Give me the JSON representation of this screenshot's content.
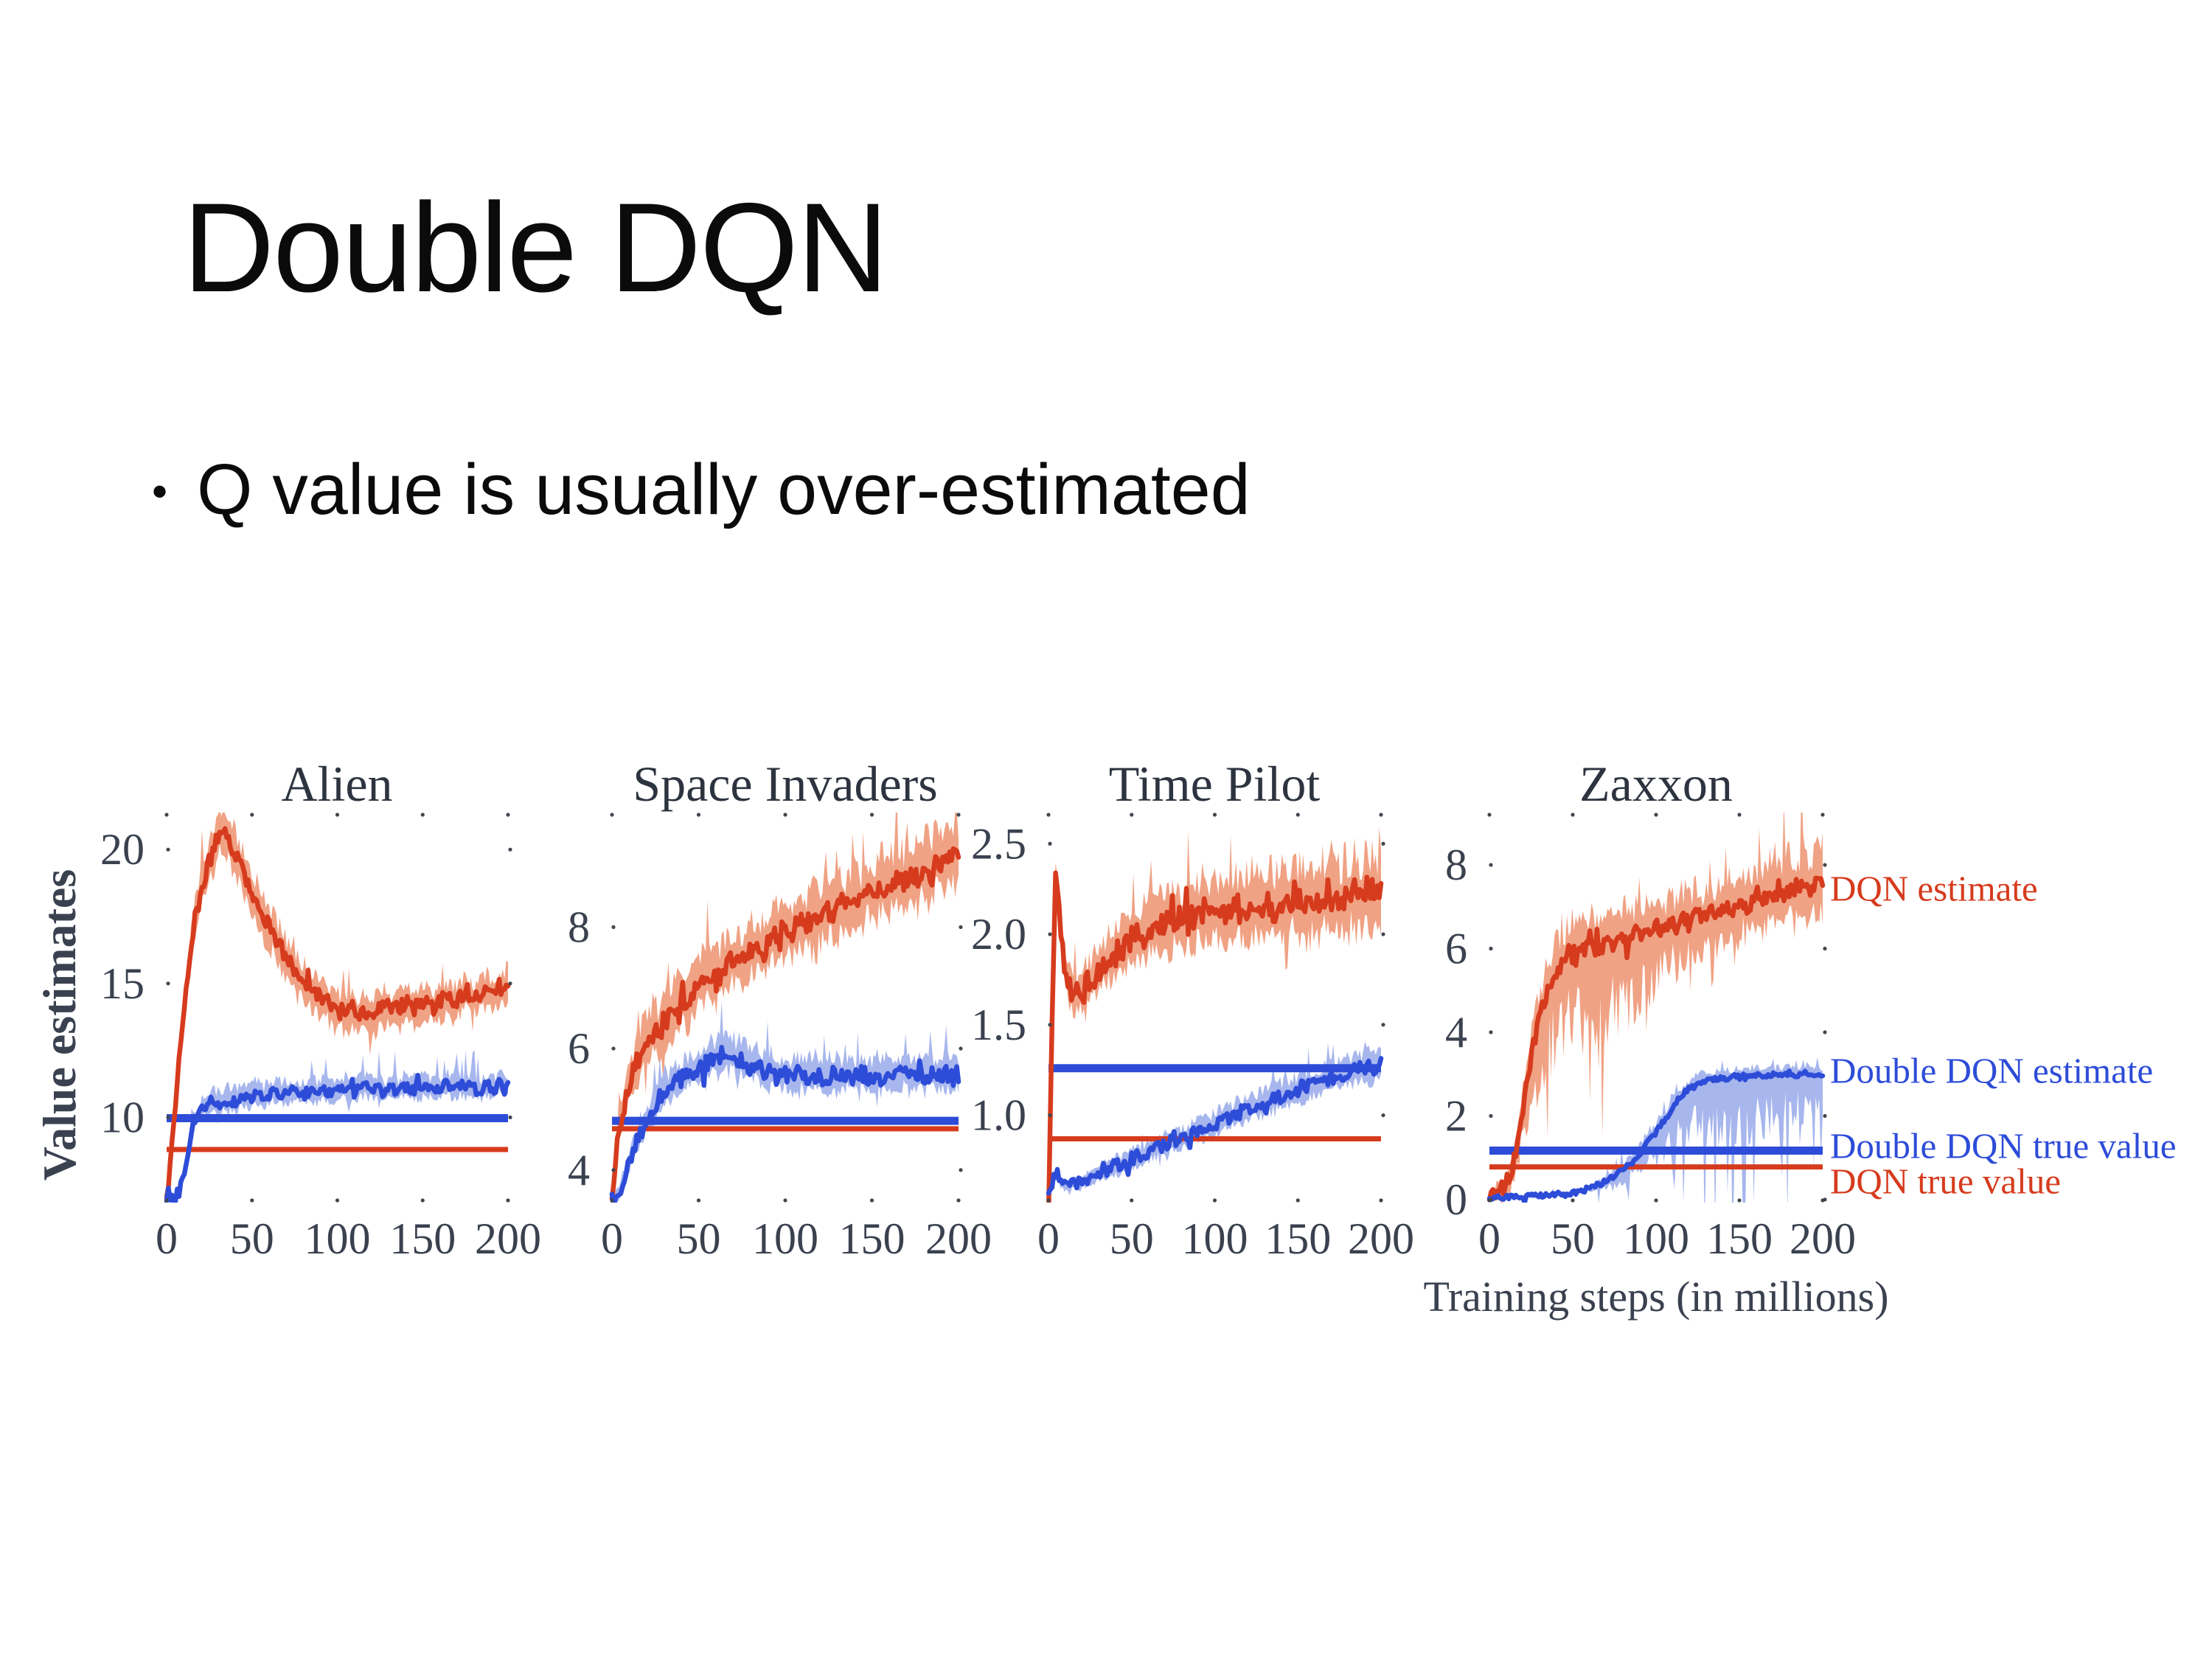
{
  "slide": {
    "title": "Double DQN",
    "bullet_glyph": "•",
    "bullet_text": "Q value is usually over-estimated"
  },
  "figure_colors": {
    "dqn_line": "#d63b1d",
    "dqn_band": "#f0a284",
    "ddqn_line": "#2d4cd8",
    "ddqn_band": "#a7b6ed",
    "tick_text": "#3a414f",
    "title_text": "#2d3440"
  },
  "chart_data": {
    "type": "line",
    "xlabel": "Training steps (in millions)",
    "ylabel": "Value estimates",
    "xticks": [
      0,
      50,
      100,
      150,
      200
    ],
    "xlim": [
      0,
      200
    ],
    "grid": false,
    "legend_position": "right-of-last-panel",
    "series_legend": [
      "DQN estimate",
      "Double DQN estimate",
      "Double DQN true value",
      "DQN true value"
    ],
    "x": [
      0,
      4,
      8,
      12,
      16,
      20,
      24,
      28,
      32,
      36,
      40,
      44,
      48,
      52,
      56,
      60,
      64,
      68,
      72,
      76,
      80,
      84,
      88,
      92,
      96,
      100,
      104,
      108,
      112,
      116,
      120,
      124,
      128,
      132,
      136,
      140,
      144,
      148,
      152,
      156,
      160,
      164,
      168,
      172,
      176,
      180,
      184,
      188,
      192,
      196,
      200
    ],
    "charts": [
      {
        "title": "Alien",
        "ylim": [
          6.9,
          21.3
        ],
        "yticks": [
          10,
          15,
          20
        ],
        "ytick_labels": [
          "10",
          "15",
          "20"
        ],
        "dqn_true": 8.8,
        "ddqn_true": 9.97,
        "dqn_estimate": [
          6.9,
          9.6,
          12.6,
          15.2,
          17.2,
          18.4,
          19.4,
          20.1,
          20.8,
          20.4,
          19.8,
          19.3,
          18.7,
          18.1,
          17.6,
          17.1,
          16.7,
          16.2,
          15.8,
          15.5,
          15.1,
          14.8,
          14.6,
          14.4,
          14.2,
          14.0,
          13.9,
          14.1,
          13.8,
          14.0,
          13.7,
          14.0,
          14.2,
          13.9,
          14.1,
          14.3,
          14.0,
          14.2,
          14.4,
          14.1,
          14.3,
          14.5,
          14.2,
          14.5,
          14.7,
          14.4,
          14.6,
          14.8,
          14.5,
          14.8,
          15.0
        ],
        "ddqn_estimate": [
          6.9,
          6.9,
          7.3,
          8.6,
          9.9,
          10.3,
          10.5,
          10.6,
          10.5,
          10.7,
          10.6,
          10.8,
          10.7,
          10.9,
          10.7,
          10.8,
          11.0,
          10.8,
          10.9,
          11.0,
          10.8,
          11.0,
          10.9,
          11.1,
          10.9,
          11.0,
          11.1,
          10.9,
          11.0,
          11.2,
          11.0,
          11.1,
          10.9,
          11.1,
          11.0,
          11.2,
          11.0,
          11.1,
          11.2,
          11.0,
          11.1,
          11.3,
          11.0,
          11.2,
          11.1,
          11.2,
          11.0,
          11.2,
          11.1,
          11.3,
          11.1
        ],
        "bands": {
          "dqn_upper": [
            [
              0,
              0.1
            ],
            [
              12,
              0.7
            ],
            [
              28,
              1.1
            ],
            [
              48,
              1.0
            ],
            [
              80,
              0.85
            ],
            [
              120,
              0.8
            ],
            [
              200,
              0.75
            ]
          ],
          "dqn_lower": [
            [
              0,
              0.1
            ],
            [
              12,
              0.6
            ],
            [
              28,
              1.0
            ],
            [
              48,
              1.0
            ],
            [
              100,
              0.9
            ],
            [
              200,
              0.7
            ]
          ],
          "ddqn_upper": [
            [
              0,
              0.05
            ],
            [
              12,
              0.3
            ],
            [
              24,
              0.55
            ],
            [
              60,
              0.6
            ],
            [
              120,
              0.55
            ],
            [
              200,
              0.55
            ]
          ],
          "ddqn_lower": [
            [
              0,
              0.05
            ],
            [
              12,
              0.25
            ],
            [
              24,
              0.45
            ],
            [
              200,
              0.45
            ]
          ]
        }
      },
      {
        "title": "Space Invaders",
        "ylim": [
          3.5,
          9.85
        ],
        "yticks": [
          4,
          6,
          8
        ],
        "ytick_labels": [
          "4",
          "6",
          "8"
        ],
        "dqn_true": 4.68,
        "ddqn_true": 4.81,
        "dqn_estimate": [
          3.6,
          4.7,
          5.2,
          5.6,
          5.9,
          6.1,
          6.3,
          6.2,
          6.5,
          6.6,
          6.8,
          6.7,
          7.0,
          7.1,
          7.2,
          7.1,
          7.3,
          7.4,
          7.5,
          7.4,
          7.6,
          7.7,
          7.6,
          7.8,
          7.9,
          8.0,
          7.9,
          8.1,
          8.0,
          8.2,
          8.1,
          8.3,
          8.2,
          8.4,
          8.3,
          8.5,
          8.4,
          8.6,
          8.5,
          8.7,
          8.6,
          8.8,
          8.7,
          8.9,
          8.8,
          9.0,
          8.9,
          9.1,
          9.0,
          9.2,
          9.1
        ],
        "ddqn_estimate": [
          3.5,
          3.6,
          4.0,
          4.3,
          4.6,
          4.8,
          5.0,
          5.2,
          5.3,
          5.4,
          5.5,
          5.6,
          5.6,
          5.7,
          5.8,
          5.8,
          5.9,
          5.9,
          5.8,
          5.8,
          5.7,
          5.7,
          5.6,
          5.6,
          5.5,
          5.6,
          5.5,
          5.6,
          5.5,
          5.6,
          5.5,
          5.5,
          5.6,
          5.5,
          5.6,
          5.5,
          5.6,
          5.5,
          5.6,
          5.5,
          5.6,
          5.5,
          5.6,
          5.5,
          5.6,
          5.5,
          5.6,
          5.5,
          5.6,
          5.5,
          5.6
        ],
        "bands": {
          "dqn_upper": [
            [
              0,
              0.15
            ],
            [
              16,
              0.55
            ],
            [
              60,
              0.55
            ],
            [
              120,
              0.6
            ],
            [
              200,
              0.7
            ]
          ],
          "dqn_lower": [
            [
              0,
              0.12
            ],
            [
              16,
              0.45
            ],
            [
              200,
              0.55
            ]
          ],
          "ddqn_upper": [
            [
              0,
              0.08
            ],
            [
              16,
              0.3
            ],
            [
              60,
              0.4
            ],
            [
              200,
              0.35
            ]
          ],
          "ddqn_lower": [
            [
              0,
              0.08
            ],
            [
              16,
              0.25
            ],
            [
              200,
              0.3
            ]
          ]
        }
      },
      {
        "title": "Time Pilot",
        "ylim": [
          0.53,
          2.66
        ],
        "yticks": [
          1.0,
          1.5,
          2.0,
          2.5
        ],
        "ytick_labels": [
          "1.0",
          "1.5",
          "2.0",
          "2.5"
        ],
        "dqn_true": 0.87,
        "ddqn_true": 1.26,
        "dqn_estimate": [
          0.55,
          2.35,
          1.95,
          1.72,
          1.66,
          1.7,
          1.73,
          1.77,
          1.82,
          1.86,
          1.89,
          1.93,
          1.96,
          2.0,
          1.97,
          2.05,
          2.02,
          2.08,
          2.05,
          2.1,
          2.07,
          2.12,
          2.09,
          2.14,
          2.1,
          2.12,
          2.15,
          2.1,
          2.17,
          2.12,
          2.15,
          2.2,
          2.14,
          2.18,
          2.12,
          2.2,
          2.15,
          2.22,
          2.17,
          2.15,
          2.2,
          2.18,
          2.24,
          2.19,
          2.17,
          2.21,
          2.24,
          2.19,
          2.27,
          2.21,
          2.24
        ],
        "ddqn_estimate": [
          0.55,
          0.68,
          0.62,
          0.6,
          0.63,
          0.62,
          0.65,
          0.67,
          0.7,
          0.7,
          0.72,
          0.73,
          0.75,
          0.77,
          0.78,
          0.8,
          0.82,
          0.83,
          0.85,
          0.86,
          0.87,
          0.88,
          0.9,
          0.92,
          0.93,
          0.95,
          0.97,
          0.98,
          1.0,
          1.02,
          1.03,
          1.05,
          1.06,
          1.08,
          1.09,
          1.1,
          1.12,
          1.13,
          1.15,
          1.16,
          1.17,
          1.19,
          1.2,
          1.21,
          1.22,
          1.24,
          1.25,
          1.26,
          1.27,
          1.26,
          1.28
        ],
        "bands": {
          "dqn_upper": [
            [
              0,
              0.04
            ],
            [
              4,
              0.1
            ],
            [
              16,
              0.14
            ],
            [
              60,
              0.2
            ],
            [
              200,
              0.28
            ]
          ],
          "dqn_lower": [
            [
              0,
              0.04
            ],
            [
              4,
              0.1
            ],
            [
              16,
              0.14
            ],
            [
              60,
              0.18
            ],
            [
              200,
              0.25
            ]
          ],
          "ddqn_upper": [
            [
              0,
              0.02
            ],
            [
              40,
              0.06
            ],
            [
              120,
              0.09
            ],
            [
              200,
              0.11
            ]
          ],
          "ddqn_lower": [
            [
              0,
              0.02
            ],
            [
              40,
              0.06
            ],
            [
              120,
              0.08
            ],
            [
              200,
              0.1
            ]
          ]
        }
      },
      {
        "title": "Zaxxon",
        "ylim": [
          -0.02,
          9.2
        ],
        "yticks": [
          0,
          2,
          4,
          6,
          8
        ],
        "ytick_labels": [
          "0",
          "2",
          "4",
          "6",
          "8"
        ],
        "dqn_true": 0.78,
        "ddqn_true": 1.17,
        "dqn_estimate": [
          0.1,
          0.15,
          0.25,
          0.5,
          1.2,
          2.2,
          3.2,
          4.0,
          4.6,
          5.1,
          5.5,
          5.7,
          5.9,
          6.0,
          6.0,
          6.1,
          6.0,
          6.1,
          6.2,
          6.1,
          6.3,
          6.2,
          6.4,
          6.3,
          6.4,
          6.5,
          6.4,
          6.6,
          6.5,
          6.7,
          6.6,
          6.8,
          6.7,
          6.9,
          6.8,
          7.0,
          6.9,
          7.0,
          7.1,
          7.0,
          7.2,
          7.1,
          7.3,
          7.2,
          7.3,
          7.4,
          7.3,
          7.5,
          7.4,
          7.5,
          7.5
        ],
        "ddqn_estimate": [
          0.05,
          0.05,
          0.06,
          0.05,
          0.07,
          0.06,
          0.08,
          0.08,
          0.1,
          0.1,
          0.12,
          0.13,
          0.15,
          0.18,
          0.22,
          0.27,
          0.33,
          0.4,
          0.48,
          0.58,
          0.7,
          0.83,
          1.0,
          1.2,
          1.4,
          1.62,
          1.85,
          2.08,
          2.3,
          2.5,
          2.65,
          2.75,
          2.82,
          2.87,
          2.9,
          2.88,
          2.92,
          2.95,
          2.9,
          2.95,
          3.0,
          2.95,
          3.0,
          2.97,
          3.0,
          3.02,
          2.98,
          3.03,
          3.0,
          3.02,
          3.0
        ],
        "bands": {
          "dqn_upper": [
            [
              0,
              0.04
            ],
            [
              16,
              0.4
            ],
            [
              32,
              0.9
            ],
            [
              60,
              0.85
            ],
            [
              100,
              0.8
            ],
            [
              160,
              0.95
            ],
            [
              200,
              1.1
            ]
          ],
          "dqn_lower": [
            [
              0,
              0.04
            ],
            [
              16,
              0.6
            ],
            [
              28,
              1.6
            ],
            [
              44,
              2.4
            ],
            [
              64,
              2.5
            ],
            [
              84,
              2.0
            ],
            [
              104,
              1.3
            ],
            [
              130,
              0.95
            ],
            [
              200,
              0.85
            ]
          ],
          "ddqn_upper": [
            [
              0,
              0.02
            ],
            [
              60,
              0.08
            ],
            [
              96,
              0.3
            ],
            [
              128,
              0.25
            ],
            [
              200,
              0.2
            ]
          ],
          "ddqn_lower": [
            [
              0,
              0.02
            ],
            [
              60,
              0.08
            ],
            [
              96,
              0.5
            ],
            [
              116,
              1.1
            ],
            [
              136,
              1.7
            ],
            [
              156,
              1.5
            ],
            [
              176,
              1.2
            ],
            [
              200,
              1.0
            ]
          ]
        }
      }
    ]
  }
}
